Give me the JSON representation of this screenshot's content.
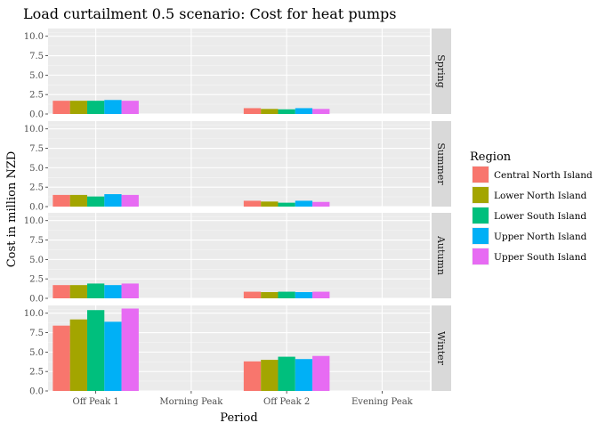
{
  "chart_data": {
    "type": "bar",
    "title": "Load curtailment 0.5 scenario: Cost for heat pumps",
    "xlabel": "Period",
    "ylabel": "Cost in million NZD",
    "categories": [
      "Off Peak 1",
      "Morning Peak",
      "Off Peak 2",
      "Evening Peak"
    ],
    "ylim": [
      0,
      11
    ],
    "yticks": [
      "0.0",
      "2.5",
      "5.0",
      "7.5",
      "10.0"
    ],
    "grid": true,
    "legend": {
      "title": "Region",
      "placement": "right"
    },
    "series": [
      {
        "name": "Central North Island",
        "color": "#F8766D"
      },
      {
        "name": "Lower North Island",
        "color": "#A3A500"
      },
      {
        "name": "Lower South Island",
        "color": "#00BF7D"
      },
      {
        "name": "Upper North Island",
        "color": "#00B0F6"
      },
      {
        "name": "Upper South Island",
        "color": "#E76BF3"
      }
    ],
    "facets": [
      {
        "name": "Spring",
        "values": [
          [
            1.7,
            0,
            0.75,
            0
          ],
          [
            1.7,
            0,
            0.65,
            0
          ],
          [
            1.7,
            0,
            0.6,
            0
          ],
          [
            1.8,
            0,
            0.75,
            0
          ],
          [
            1.7,
            0,
            0.65,
            0
          ]
        ]
      },
      {
        "name": "Summer",
        "values": [
          [
            1.5,
            0,
            0.75,
            0
          ],
          [
            1.5,
            0,
            0.65,
            0
          ],
          [
            1.3,
            0,
            0.5,
            0
          ],
          [
            1.6,
            0,
            0.75,
            0
          ],
          [
            1.5,
            0,
            0.6,
            0
          ]
        ]
      },
      {
        "name": "Autumn",
        "values": [
          [
            1.7,
            0,
            0.85,
            0
          ],
          [
            1.7,
            0,
            0.8,
            0
          ],
          [
            1.9,
            0,
            0.85,
            0
          ],
          [
            1.7,
            0,
            0.8,
            0
          ],
          [
            1.9,
            0,
            0.85,
            0
          ]
        ]
      },
      {
        "name": "Winter",
        "values": [
          [
            8.4,
            0,
            3.8,
            0
          ],
          [
            9.2,
            0,
            4.0,
            0
          ],
          [
            10.4,
            0,
            4.4,
            0
          ],
          [
            8.9,
            0,
            4.1,
            0
          ],
          [
            10.6,
            0,
            4.5,
            0
          ]
        ]
      }
    ]
  }
}
